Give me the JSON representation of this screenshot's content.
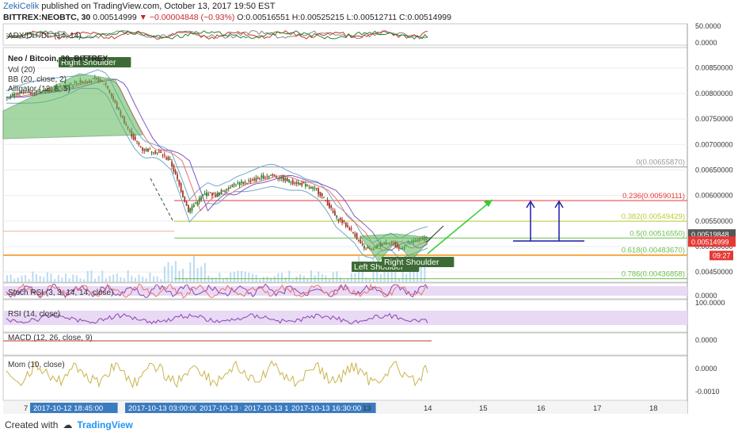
{
  "header": {
    "username": "ZekiCelik",
    "published": "published on TradingView.com, October 13, 2017 19:50 EST",
    "symbol": "BITTREX:NEOBTC, 30",
    "last": "0.00514999",
    "change_arrow": "▼",
    "change": "−0.00004848 (−0.93%)",
    "ohlc": "O:0.00516551  H:0.00525215  L:0.00512711  C:0.00514999"
  },
  "footer": {
    "created_with": "Created with",
    "brand": "TradingView"
  },
  "colors": {
    "candle_up": "#2e7d32",
    "candle_down": "#a33a2a",
    "pattern_fill": "#5cb85c",
    "rsi_band": "#e8d9f5",
    "stoch_band": "#e8d9f5",
    "mom_line": "#c9b44a",
    "rsi_line": "#8e44ad",
    "volume": "#aad2ee",
    "price_tag": "#555555",
    "last_tag": "#e53935",
    "fib_red": "#e53935",
    "fib_green": "#6abf4b",
    "arrow_green": "#33cc33",
    "arrow_blue": "#1a1aaa",
    "orange_line": "#f4a742"
  },
  "chart_data": {
    "type": "line",
    "title": "Neo / Bitcoin, 30, BITTREX",
    "indicators": [
      "Vol (20)",
      "BB (20, close, 2)",
      "Alligator (13, 8, 5)"
    ],
    "xlabel": "",
    "ylabel": "",
    "x_ticks": [
      "7",
      "2017-10-12 18:45:00",
      "2017-10-13 03:00:00",
      "2017-10-13 0",
      "2017-10-13 1:",
      "2017-10-13 16:30:00",
      "13",
      "14",
      "15",
      "16",
      "17",
      "18"
    ],
    "y_ticks": [
      "0.00450000",
      "0.00500000",
      "0.00550000",
      "0.00600000",
      "0.00650000",
      "0.00700000",
      "0.00750000",
      "0.00800000",
      "0.00850000"
    ],
    "ylim": [
      0.0043,
      0.0089
    ],
    "price_approx": [
      [
        0,
        0.00793
      ],
      [
        10,
        0.008
      ],
      [
        20,
        0.00805
      ],
      [
        30,
        0.00812
      ],
      [
        40,
        0.00822
      ],
      [
        50,
        0.00828
      ],
      [
        55,
        0.00818
      ],
      [
        60,
        0.0078
      ],
      [
        65,
        0.00745
      ],
      [
        70,
        0.00712
      ],
      [
        75,
        0.0069
      ],
      [
        80,
        0.00688
      ],
      [
        85,
        0.00682
      ],
      [
        90,
        0.00668
      ],
      [
        95,
        0.0062
      ],
      [
        100,
        0.0057
      ],
      [
        105,
        0.0059
      ],
      [
        110,
        0.00605
      ],
      [
        115,
        0.006
      ],
      [
        120,
        0.00612
      ],
      [
        125,
        0.00622
      ],
      [
        130,
        0.00625
      ],
      [
        135,
        0.0063
      ],
      [
        140,
        0.00636
      ],
      [
        145,
        0.0064
      ],
      [
        150,
        0.00635
      ],
      [
        155,
        0.00628
      ],
      [
        160,
        0.00625
      ],
      [
        165,
        0.00618
      ],
      [
        170,
        0.0061
      ],
      [
        175,
        0.0059
      ],
      [
        180,
        0.0056
      ],
      [
        185,
        0.00545
      ],
      [
        190,
        0.00528
      ],
      [
        195,
        0.005
      ],
      [
        200,
        0.00492
      ],
      [
        205,
        0.00505
      ],
      [
        210,
        0.0051
      ],
      [
        215,
        0.00495
      ],
      [
        220,
        0.00505
      ],
      [
        225,
        0.00512
      ],
      [
        230,
        0.00518
      ]
    ],
    "fib_levels": [
      {
        "ratio": "0",
        "value": 0.0065587,
        "label": "0(0.00655870)"
      },
      {
        "ratio": "0.236",
        "value": 0.00590111,
        "label": "0.236(0.00590111)"
      },
      {
        "ratio": "0.382",
        "value": 0.00549429,
        "label": "0.382(0.00549429)"
      },
      {
        "ratio": "0.5",
        "value": 0.0051655,
        "label": "0.5(0.00516550)"
      },
      {
        "ratio": "0.618",
        "value": 0.0048367,
        "label": "0.618(0.00483670)"
      },
      {
        "ratio": "0.786",
        "value": 0.00436858,
        "label": "0.786(0.00436858)"
      }
    ],
    "price_tags": [
      {
        "value": 0.00519848,
        "text": "0.00519848"
      },
      {
        "value": 0.00514999,
        "text": "0.00514999"
      }
    ],
    "time_tag": "09:27",
    "annotations": [
      {
        "text": "Right Shoulder",
        "at": "top-left"
      },
      {
        "text": "Left Shoulder",
        "at": "bottom-left"
      },
      {
        "text": "Right Shoulder",
        "at": "bottom-right"
      }
    ],
    "panes": {
      "adx": {
        "label": "ADX/DI+/DI- (14, 14)",
        "ticks": [
          "50.0000",
          "0.0000"
        ]
      },
      "stoch": {
        "label": "Stoch RSI (3, 3, 14, 14, close)",
        "ticks": [
          "0.0000"
        ]
      },
      "rsi": {
        "label": "RSI (14, close)",
        "ticks": [
          "100.0000"
        ]
      },
      "macd": {
        "label": "MACD (12, 26, close, 9)",
        "ticks": [
          "0.0000"
        ]
      },
      "mom": {
        "label": "Mom (10, close)",
        "ticks": [
          "0.0000",
          "-0.0010"
        ]
      }
    }
  }
}
